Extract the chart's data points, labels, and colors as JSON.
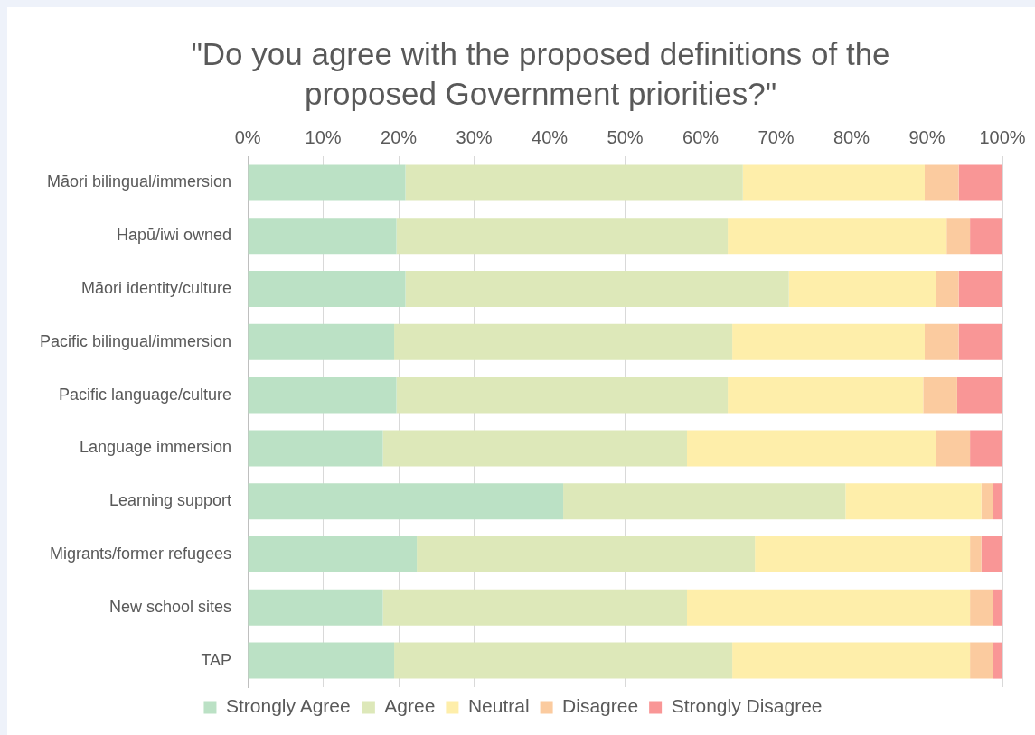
{
  "chart_data": {
    "type": "bar",
    "orientation": "horizontal",
    "stacked": true,
    "title": "\"Do you agree with the proposed definitions of the proposed Government priorities?\"",
    "categories": [
      "Māori bilingual/immersion",
      "Hapū/iwi owned",
      "Māori identity/culture",
      "Pacific bilingual/immersion",
      "Pacific language/culture",
      "Language immersion",
      "Learning support",
      "Migrants/former refugees",
      "New school sites",
      "TAP"
    ],
    "series": [
      {
        "name": "Strongly Agree",
        "color": "#bbe1c5",
        "values": [
          20.9,
          19.7,
          20.9,
          19.4,
          19.7,
          17.9,
          41.8,
          22.4,
          17.9,
          19.4
        ]
      },
      {
        "name": "Agree",
        "color": "#dde8b9",
        "values": [
          44.7,
          43.9,
          50.8,
          44.8,
          43.9,
          40.3,
          37.4,
          44.8,
          40.3,
          44.8
        ]
      },
      {
        "name": "Neutral",
        "color": "#feeeaa",
        "values": [
          24.1,
          29.0,
          19.5,
          25.5,
          25.9,
          33.0,
          18.0,
          28.5,
          37.5,
          31.5
        ]
      },
      {
        "name": "Disagree",
        "color": "#fbcb9f",
        "values": [
          4.5,
          3.1,
          3.0,
          4.5,
          4.5,
          4.5,
          1.5,
          1.5,
          3.0,
          3.0
        ]
      },
      {
        "name": "Strongly Disagree",
        "color": "#f99696",
        "values": [
          5.8,
          4.3,
          5.8,
          5.8,
          6.0,
          4.3,
          1.3,
          2.8,
          1.3,
          1.3
        ]
      }
    ],
    "xlim": [
      0,
      100
    ],
    "xticks": [
      {
        "value": 0,
        "label": "0%"
      },
      {
        "value": 10,
        "label": "10%"
      },
      {
        "value": 20,
        "label": "20%"
      },
      {
        "value": 30,
        "label": "30%"
      },
      {
        "value": 40,
        "label": "40%"
      },
      {
        "value": 50,
        "label": "50%"
      },
      {
        "value": 60,
        "label": "60%"
      },
      {
        "value": 70,
        "label": "70%"
      },
      {
        "value": 80,
        "label": "80%"
      },
      {
        "value": 90,
        "label": "90%"
      },
      {
        "value": 100,
        "label": "100%"
      }
    ],
    "grid": "x",
    "legend": "bottom"
  }
}
